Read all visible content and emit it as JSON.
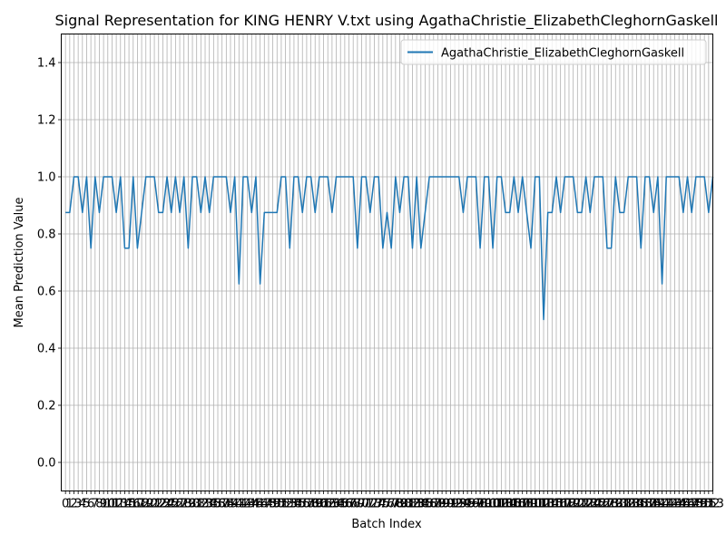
{
  "chart_data": {
    "type": "line",
    "title": "Signal Representation for KING HENRY V.txt using AgathaChristie_ElizabethCleghornGaskell",
    "xlabel": "Batch Index",
    "ylabel": "Mean Prediction Value",
    "xlim": [
      -1,
      153
    ],
    "ylim": [
      -0.1,
      1.5
    ],
    "yticks": [
      "0.0",
      "0.2",
      "0.4",
      "0.6",
      "0.8",
      "1.0",
      "1.2",
      "1.4"
    ],
    "ytick_values": [
      0.0,
      0.2,
      0.4,
      0.6,
      0.8,
      1.0,
      1.2,
      1.4
    ],
    "grid": true,
    "legend_position": "top-right",
    "series": [
      {
        "name": "AgathaChristie_ElizabethCleghornGaskell",
        "color": "#1f77b4",
        "values": [
          0.875,
          0.875,
          1.0,
          1.0,
          0.875,
          1.0,
          0.75,
          1.0,
          0.875,
          1.0,
          1.0,
          1.0,
          0.875,
          1.0,
          0.75,
          0.75,
          1.0,
          0.75,
          0.875,
          1.0,
          1.0,
          1.0,
          0.875,
          0.875,
          1.0,
          0.875,
          1.0,
          0.875,
          1.0,
          0.75,
          1.0,
          1.0,
          0.875,
          1.0,
          0.875,
          1.0,
          1.0,
          1.0,
          1.0,
          0.875,
          1.0,
          0.625,
          1.0,
          1.0,
          0.875,
          1.0,
          0.625,
          0.875,
          0.875,
          0.875,
          0.875,
          1.0,
          1.0,
          0.75,
          1.0,
          1.0,
          0.875,
          1.0,
          1.0,
          0.875,
          1.0,
          1.0,
          1.0,
          0.875,
          1.0,
          1.0,
          1.0,
          1.0,
          1.0,
          0.75,
          1.0,
          1.0,
          0.875,
          1.0,
          1.0,
          0.75,
          0.875,
          0.75,
          1.0,
          0.875,
          1.0,
          1.0,
          0.75,
          1.0,
          0.75,
          0.875,
          1.0,
          1.0,
          1.0,
          1.0,
          1.0,
          1.0,
          1.0,
          1.0,
          0.875,
          1.0,
          1.0,
          1.0,
          0.75,
          1.0,
          1.0,
          0.75,
          1.0,
          1.0,
          0.875,
          0.875,
          1.0,
          0.875,
          1.0,
          0.875,
          0.75,
          1.0,
          1.0,
          0.5,
          0.875,
          0.875,
          1.0,
          0.875,
          1.0,
          1.0,
          1.0,
          0.875,
          0.875,
          1.0,
          0.875,
          1.0,
          1.0,
          1.0,
          0.75,
          0.75,
          1.0,
          0.875,
          0.875,
          1.0,
          1.0,
          1.0,
          0.75,
          1.0,
          1.0,
          0.875,
          1.0,
          0.625,
          1.0,
          1.0,
          1.0,
          1.0,
          0.875,
          1.0,
          0.875,
          1.0,
          1.0,
          1.0,
          0.875,
          1.0
        ]
      }
    ]
  }
}
